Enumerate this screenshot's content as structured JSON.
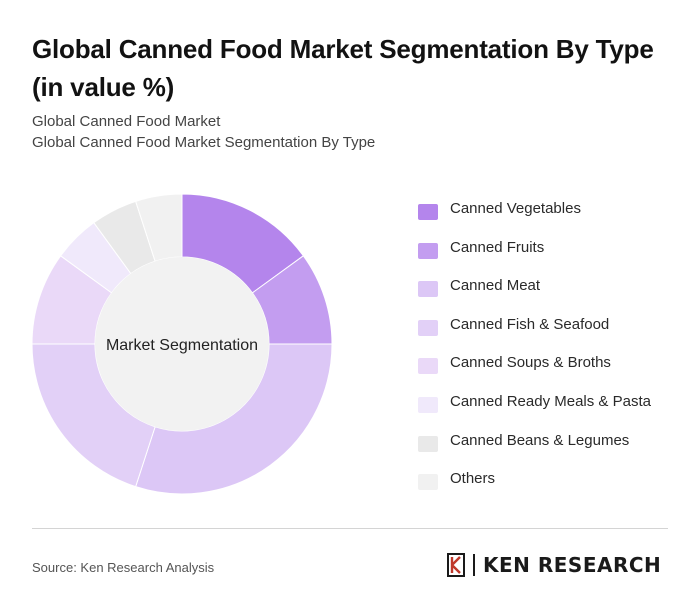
{
  "title": "Global Canned Food Market Segmentation By Type (in value %)",
  "subtitle_1": "Global Canned Food Market",
  "subtitle_2": "Global Canned Food Market Segmentation By Type",
  "source": "Source: Ken Research Analysis",
  "logo_text": "KEN RESEARCH",
  "chart_data": {
    "type": "pie",
    "center_label": "Market Segmentation",
    "categories": [
      "Canned Vegetables",
      "Canned Fruits",
      "Canned Meat",
      "Canned Fish & Seafood",
      "Canned Soups & Broths",
      "Canned Ready Meals & Pasta",
      "Canned Beans & Legumes",
      "Others"
    ],
    "values": [
      15,
      10,
      30,
      20,
      10,
      5,
      5,
      5
    ],
    "colors": [
      "#b485ec",
      "#c39df0",
      "#dcc7f6",
      "#e2d0f7",
      "#ead9f8",
      "#f0e9fb",
      "#e9e9e9",
      "#f1f1f1"
    ],
    "legend_position": "right"
  }
}
